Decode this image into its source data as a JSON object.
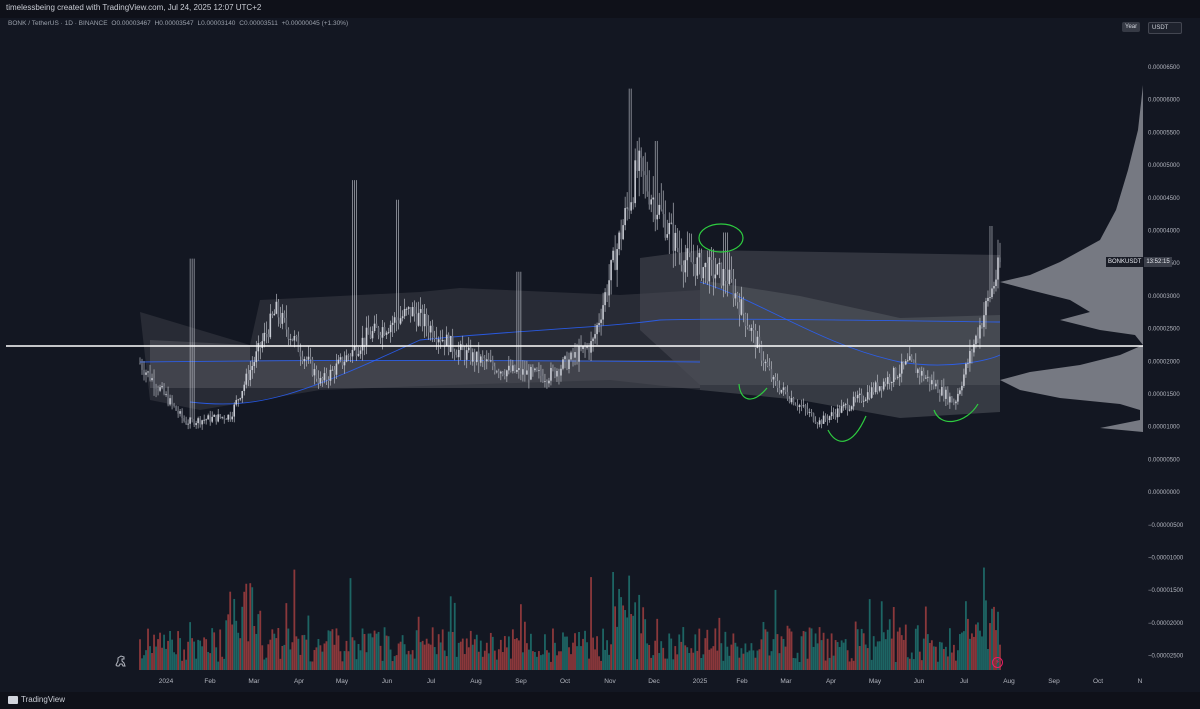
{
  "header": {
    "title": "timelessbeing created with TradingView.com, Jul 24, 2025 12:07 UTC+2"
  },
  "symbol_info": {
    "name": "BONK / TetherUS · 1D · BINANCE",
    "open": "O0.00003467",
    "high": "H0.00003547",
    "low": "L0.00003140",
    "close": "C0.00003511",
    "change": "+0.00000045 (+1.30%)"
  },
  "toolbar": {
    "scale_label": "Year",
    "currency_label": "USDT"
  },
  "price_axis": {
    "ticks": [
      "0.00006500",
      "0.00006000",
      "0.00005500",
      "0.00005000",
      "0.00004500",
      "0.00004000",
      "0.00003500",
      "0.00003000",
      "0.00002500",
      "0.00002000",
      "0.00001500",
      "0.00001000",
      "0.00000500",
      "0.00000000",
      "−0.00000500",
      "−0.00001000",
      "−0.00001500",
      "−0.00002000",
      "−0.00002500"
    ]
  },
  "time_axis": {
    "ticks": [
      "2024",
      "Feb",
      "Mar",
      "Apr",
      "May",
      "Jun",
      "Jul",
      "Aug",
      "Sep",
      "Oct",
      "Nov",
      "Dec",
      "2025",
      "Feb",
      "Mar",
      "Apr",
      "May",
      "Jun",
      "Jul",
      "Aug",
      "Sep",
      "Oct",
      "N"
    ]
  },
  "symbol_label": {
    "name": "BONKUSDT",
    "countdown": "13:52:15"
  },
  "footer": {
    "brand": "TradingView"
  },
  "colors": {
    "background": "#131722",
    "candle": "#c9ccd4",
    "vwap": "#2962ff",
    "annotation": "#2ecc40",
    "horizontal_line": "#ffffff",
    "volume_up": "#26a69a",
    "volume_down": "#ef5350"
  },
  "chart_data": {
    "type": "candlestick",
    "title": "BONK / TetherUS · 1D · BINANCE",
    "y_range": [
      -2.8e-05,
      6.8e-05
    ],
    "horizontal_line_price": 2.24e-05,
    "x": [
      "2023-12",
      "2024-01",
      "2024-02",
      "2024-03",
      "2024-04",
      "2024-05",
      "2024-06",
      "2024-07",
      "2024-08",
      "2024-09",
      "2024-10",
      "2024-11",
      "2024-12",
      "2025-01",
      "2025-02",
      "2025-03",
      "2025-04",
      "2025-05",
      "2025-06",
      "2025-07"
    ],
    "close_approx": [
      2e-05,
      1.1e-05,
      1.2e-05,
      2.8e-05,
      1.7e-05,
      2.4e-05,
      2.8e-05,
      2.2e-05,
      1.9e-05,
      1.8e-05,
      2.3e-05,
      5e-05,
      3.6e-05,
      3.3e-05,
      1.7e-05,
      1.1e-05,
      1.5e-05,
      2e-05,
      1.4e-05,
      3.51e-05
    ]
  }
}
